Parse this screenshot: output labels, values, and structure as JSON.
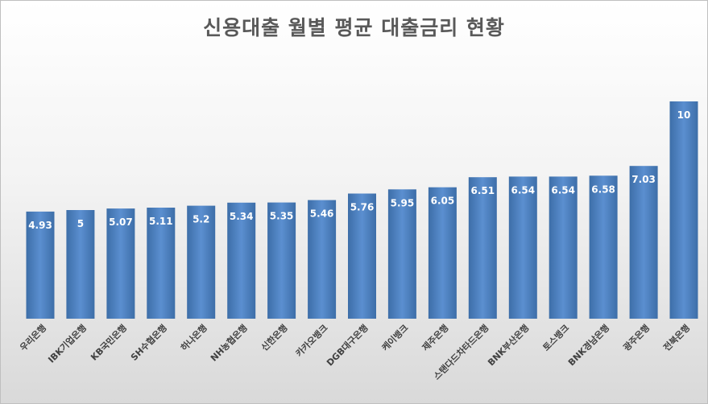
{
  "chart_data": {
    "type": "bar",
    "title": "신용대출 월별 평균 대출금리 현황",
    "categories": [
      "우리은행",
      "IBK기업은행",
      "KB국민은행",
      "SH수협은행",
      "하나은행",
      "NH농협은행",
      "신한은행",
      "카카오뱅크",
      "DGB대구은행",
      "케이뱅크",
      "제주은행",
      "스탠다드차타드은행",
      "BNK부산은행",
      "토스뱅크",
      "BNK경남은행",
      "광주은행",
      "전북은행"
    ],
    "values": [
      4.93,
      5,
      5.07,
      5.11,
      5.2,
      5.34,
      5.35,
      5.46,
      5.76,
      5.95,
      6.05,
      6.51,
      6.54,
      6.54,
      6.58,
      7.03,
      10
    ],
    "value_labels": [
      "4.93",
      "5",
      "5.07",
      "5.11",
      "5.2",
      "5.34",
      "5.35",
      "5.46",
      "5.76",
      "5.95",
      "6.05",
      "6.51",
      "6.54",
      "6.54",
      "6.58",
      "7.03",
      "10"
    ],
    "ylim": [
      0,
      10
    ],
    "grid": false,
    "legend": "none",
    "bar_color": "#4a7ebb",
    "bar_color_top": "#5b8fd0",
    "bar_color_bottom": "#3d6ea8"
  }
}
